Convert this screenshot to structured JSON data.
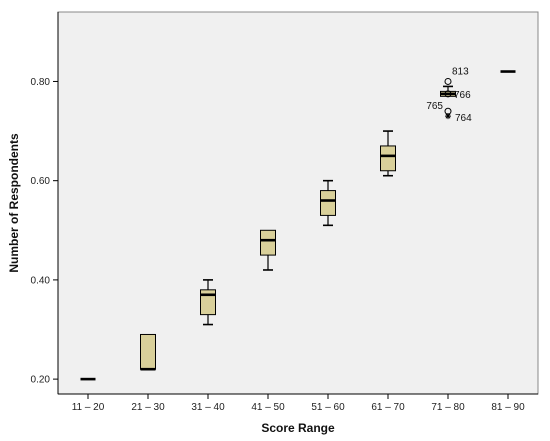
{
  "chart_data": {
    "type": "boxplot",
    "xlabel": "Score Range",
    "ylabel": "Number of Respondents",
    "ylim": [
      0.17,
      0.94
    ],
    "yticks": [
      0.2,
      0.4,
      0.6,
      0.8
    ],
    "ytick_labels": [
      "0.20",
      "0.40",
      "0.60",
      "0.80"
    ],
    "grid": false,
    "colors": {
      "box_fill": "#d9d09a",
      "plot_bg": "#f0f0f0",
      "stroke": "#000000"
    },
    "categories": [
      "11 – 20",
      "21 – 30",
      "31 – 40",
      "41 – 50",
      "51 – 60",
      "61 – 70",
      "71 – 80",
      "81 – 90"
    ],
    "boxes": [
      {
        "category": "11 – 20",
        "min": 0.2,
        "q1": 0.2,
        "median": 0.2,
        "q3": 0.2,
        "max": 0.2
      },
      {
        "category": "21 – 30",
        "min": 0.22,
        "q1": 0.22,
        "median": 0.22,
        "q3": 0.29,
        "max": 0.29
      },
      {
        "category": "31 – 40",
        "min": 0.31,
        "q1": 0.33,
        "median": 0.37,
        "q3": 0.38,
        "max": 0.4
      },
      {
        "category": "41 – 50",
        "min": 0.42,
        "q1": 0.45,
        "median": 0.48,
        "q3": 0.5,
        "max": 0.5
      },
      {
        "category": "51 – 60",
        "min": 0.51,
        "q1": 0.53,
        "median": 0.56,
        "q3": 0.58,
        "max": 0.6
      },
      {
        "category": "61 – 70",
        "min": 0.61,
        "q1": 0.62,
        "median": 0.65,
        "q3": 0.67,
        "max": 0.7
      },
      {
        "category": "71 – 80",
        "min": 0.77,
        "q1": 0.77,
        "median": 0.775,
        "q3": 0.78,
        "max": 0.79
      },
      {
        "category": "81 – 90",
        "min": 0.82,
        "q1": 0.82,
        "median": 0.82,
        "q3": 0.82,
        "max": 0.82
      }
    ],
    "outliers": [
      {
        "category": "71 – 80",
        "value": 0.8,
        "label": "813",
        "marker": "circle"
      },
      {
        "category": "71 – 80",
        "value": 0.775,
        "label": "766",
        "marker": "circle"
      },
      {
        "category": "71 – 80",
        "value": 0.74,
        "label": "765",
        "marker": "circle"
      },
      {
        "category": "71 – 80",
        "value": 0.73,
        "label": "764",
        "marker": "star"
      }
    ]
  }
}
